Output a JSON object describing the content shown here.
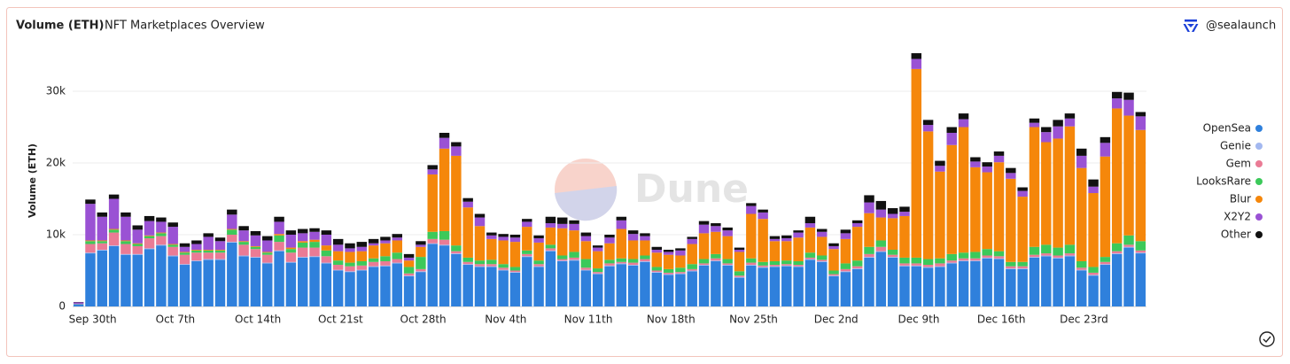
{
  "chart_data": {
    "type": "stacked_bar",
    "title": "Volume (ETH)",
    "subtitle": "NFT Marketplaces Overview",
    "source": "@sealaunch",
    "watermark": "Dune",
    "ylabel": "Volume (ETH)",
    "ylim": [
      0,
      35500
    ],
    "yticks": [
      0,
      {
        "value": 10000,
        "label": "10k"
      },
      {
        "value": 20000,
        "label": "20k"
      },
      {
        "value": 30000,
        "label": "30k"
      }
    ],
    "grid": true,
    "legend": "right",
    "categories": [
      "Sep 30th",
      null,
      null,
      null,
      null,
      null,
      null,
      "Oct 7th",
      null,
      null,
      null,
      null,
      null,
      null,
      "Oct 14th",
      null,
      null,
      null,
      null,
      null,
      null,
      "Oct 21st",
      null,
      null,
      null,
      null,
      null,
      null,
      "Oct 28th",
      null,
      null,
      null,
      null,
      null,
      null,
      "Nov 4th",
      null,
      null,
      null,
      null,
      null,
      null,
      "Nov 11th",
      null,
      null,
      null,
      null,
      null,
      null,
      "Nov 18th",
      null,
      null,
      null,
      null,
      null,
      null,
      "Nov 25th",
      null,
      null,
      null,
      null,
      null,
      null,
      "Dec 2nd",
      null,
      null,
      null,
      null,
      null,
      null,
      "Dec 9th",
      null,
      null,
      null,
      null,
      null,
      null,
      "Dec 16th",
      null,
      null,
      null,
      null,
      null,
      null,
      "Dec 23rd",
      null,
      null,
      null,
      null,
      null,
      null
    ],
    "series": [
      {
        "name": "OpenSea",
        "color": "#2f80dc",
        "values": [
          300,
          7400,
          7800,
          8400,
          7200,
          7200,
          8000,
          8500,
          7000,
          5800,
          6300,
          6500,
          6500,
          8900,
          7000,
          6800,
          6000,
          7700,
          6100,
          6800,
          6900,
          6000,
          5000,
          4800,
          5000,
          5500,
          5600,
          6000,
          4200,
          4800,
          8700,
          8500,
          7300,
          5800,
          5500,
          5500,
          5000,
          4700,
          6900,
          5500,
          7700,
          6300,
          6400,
          5000,
          4500,
          5600,
          5900,
          5700,
          6200,
          4700,
          4400,
          4500,
          4900,
          5700,
          6300,
          5700,
          4000,
          5700,
          5400,
          5500,
          5600,
          5500,
          6500,
          6200,
          4200,
          4800,
          5200,
          6800,
          7600,
          6800,
          5600,
          5600,
          5400,
          5500,
          6000,
          6300,
          6300,
          6700,
          6600,
          5200,
          5200,
          6800,
          7000,
          6700,
          7000,
          5000,
          4300,
          5800,
          7300,
          8200,
          7400
        ]
      },
      {
        "name": "Genie",
        "color": "#a3b8f0",
        "values": [
          0,
          100,
          100,
          100,
          100,
          100,
          100,
          100,
          100,
          100,
          100,
          100,
          100,
          100,
          100,
          100,
          100,
          100,
          100,
          100,
          100,
          100,
          100,
          100,
          100,
          100,
          100,
          100,
          100,
          100,
          100,
          100,
          100,
          100,
          100,
          100,
          100,
          100,
          100,
          100,
          100,
          100,
          100,
          100,
          100,
          100,
          100,
          100,
          100,
          100,
          100,
          100,
          100,
          100,
          100,
          100,
          100,
          100,
          100,
          100,
          100,
          100,
          100,
          100,
          100,
          100,
          100,
          100,
          100,
          100,
          100,
          100,
          100,
          100,
          100,
          100,
          100,
          100,
          100,
          100,
          100,
          100,
          100,
          100,
          100,
          100,
          100,
          100,
          100,
          100,
          100
        ]
      },
      {
        "name": "Gem",
        "color": "#ea7b95",
        "values": [
          50,
          1200,
          900,
          1800,
          1400,
          1100,
          1400,
          1200,
          1200,
          1300,
          1100,
          900,
          900,
          1000,
          1500,
          1100,
          1100,
          1200,
          1300,
          1300,
          1200,
          900,
          700,
          700,
          600,
          600,
          600,
          500,
          300,
          300,
          600,
          700,
          300,
          300,
          300,
          300,
          300,
          200,
          300,
          300,
          300,
          200,
          300,
          300,
          200,
          300,
          200,
          300,
          300,
          200,
          200,
          200,
          200,
          200,
          300,
          200,
          200,
          300,
          200,
          200,
          200,
          200,
          200,
          200,
          200,
          300,
          300,
          400,
          600,
          300,
          300,
          300,
          300,
          400,
          300,
          300,
          300,
          300,
          300,
          300,
          300,
          300,
          300,
          300,
          300,
          300,
          300,
          300,
          300,
          300,
          300
        ]
      },
      {
        "name": "LooksRare",
        "color": "#3cc95a",
        "values": [
          20,
          400,
          300,
          400,
          400,
          300,
          300,
          400,
          300,
          300,
          300,
          300,
          300,
          700,
          400,
          300,
          300,
          900,
          500,
          700,
          800,
          800,
          600,
          500,
          600,
          500,
          700,
          900,
          900,
          1700,
          1000,
          1200,
          800,
          600,
          500,
          600,
          500,
          500,
          500,
          500,
          500,
          500,
          800,
          1200,
          500,
          500,
          500,
          500,
          500,
          500,
          500,
          600,
          700,
          600,
          600,
          600,
          600,
          600,
          500,
          500,
          500,
          500,
          700,
          600,
          500,
          800,
          800,
          1000,
          900,
          700,
          800,
          800,
          800,
          700,
          900,
          800,
          900,
          900,
          700,
          600,
          600,
          1100,
          1200,
          1100,
          1200,
          900,
          800,
          700,
          1100,
          1300,
          1300
        ]
      },
      {
        "name": "Blur",
        "color": "#f5870b",
        "values": [
          0,
          100,
          100,
          100,
          100,
          100,
          100,
          100,
          100,
          100,
          100,
          100,
          100,
          100,
          100,
          100,
          100,
          200,
          200,
          200,
          300,
          700,
          1300,
          1500,
          1400,
          1800,
          1800,
          1700,
          900,
          1400,
          8000,
          11500,
          12500,
          7000,
          4800,
          2900,
          3300,
          3500,
          3300,
          2500,
          2400,
          3800,
          3000,
          2500,
          2400,
          2300,
          4100,
          2600,
          2100,
          2000,
          2000,
          1700,
          2800,
          3600,
          3100,
          3200,
          2700,
          6200,
          6000,
          2800,
          2700,
          3300,
          3500,
          2600,
          3000,
          3400,
          4700,
          4700,
          3200,
          4400,
          5800,
          26300,
          17800,
          12100,
          15200,
          17500,
          11800,
          10700,
          12400,
          11600,
          9100,
          16700,
          14300,
          15200,
          16500,
          13000,
          10300,
          14000,
          18800,
          16700,
          15500
        ]
      },
      {
        "name": "X2Y2",
        "color": "#9a52d4",
        "values": [
          200,
          5100,
          3300,
          4200,
          3300,
          1900,
          2000,
          1500,
          2400,
          700,
          800,
          1800,
          1200,
          2000,
          1500,
          1500,
          1600,
          1700,
          1800,
          1100,
          1100,
          1500,
          900,
          500,
          600,
          300,
          400,
          400,
          400,
          300,
          700,
          1500,
          1300,
          800,
          1200,
          500,
          500,
          600,
          700,
          600,
          600,
          600,
          900,
          700,
          500,
          800,
          1200,
          900,
          600,
          400,
          400,
          700,
          700,
          1200,
          800,
          800,
          300,
          1100,
          900,
          300,
          400,
          700,
          600,
          700,
          400,
          800,
          500,
          1500,
          1100,
          600,
          600,
          1400,
          900,
          800,
          1700,
          1100,
          800,
          800,
          900,
          800,
          800,
          600,
          1400,
          1700,
          1100,
          1700,
          900,
          1900,
          1400,
          2200,
          1900
        ]
      },
      {
        "name": "Other",
        "color": "#111111",
        "values": [
          50,
          600,
          600,
          600,
          600,
          600,
          700,
          600,
          600,
          500,
          500,
          500,
          500,
          700,
          600,
          600,
          600,
          700,
          600,
          600,
          500,
          600,
          800,
          700,
          700,
          600,
          500,
          500,
          500,
          500,
          600,
          700,
          600,
          500,
          500,
          400,
          400,
          400,
          400,
          400,
          900,
          900,
          500,
          500,
          300,
          400,
          500,
          500,
          400,
          400,
          300,
          300,
          300,
          500,
          400,
          400,
          300,
          400,
          400,
          400,
          400,
          300,
          900,
          400,
          400,
          500,
          400,
          1000,
          1200,
          800,
          700,
          800,
          700,
          700,
          800,
          800,
          600,
          600,
          600,
          700,
          500,
          600,
          700,
          900,
          700,
          1000,
          1000,
          800,
          900,
          1000,
          600
        ]
      }
    ]
  }
}
